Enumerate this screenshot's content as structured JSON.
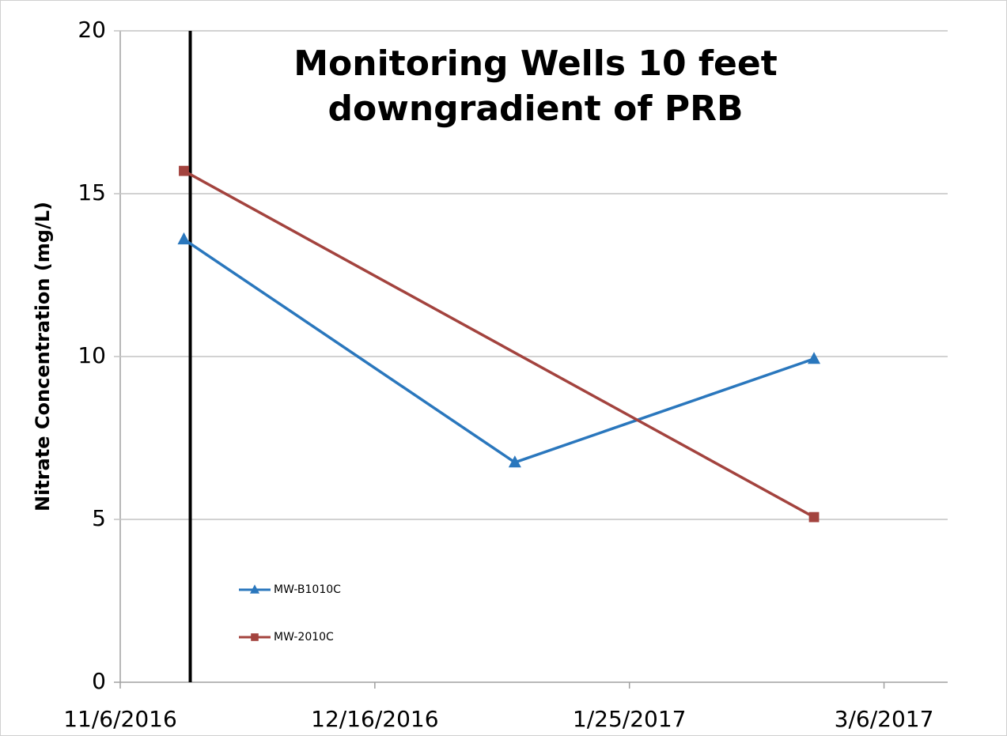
{
  "chart_data": {
    "type": "line",
    "title": "Monitoring Wells 10 feet downgradient of PRB",
    "y_label": "Nitrate Concentration (mg/L)",
    "x": [
      "2016-11-16",
      "2017-01-07",
      "2017-02-23"
    ],
    "series": [
      {
        "name": "MW-B1010C",
        "color": "#2a77bd",
        "marker": "triangle",
        "values": [
          13.6,
          6.75,
          9.93
        ]
      },
      {
        "name": "MW-2010C",
        "color": "#a3433e",
        "marker": "square",
        "values": [
          15.7,
          null,
          5.07
        ]
      }
    ],
    "vline": {
      "x": "2016-11-17",
      "color": "#000000"
    },
    "xlim": [
      "2016-11-06",
      "2017-03-16"
    ],
    "xticks": [
      {
        "value": "2016-11-06",
        "label": "11/6/2016"
      },
      {
        "value": "2016-12-16",
        "label": "12/16/2016"
      },
      {
        "value": "2017-01-25",
        "label": "1/25/2017"
      },
      {
        "value": "2017-03-06",
        "label": "3/6/2017"
      }
    ],
    "ylim": [
      0,
      20
    ],
    "yticks": [
      0,
      5,
      10,
      15,
      20
    ],
    "grid": true,
    "legend": "lower left"
  }
}
